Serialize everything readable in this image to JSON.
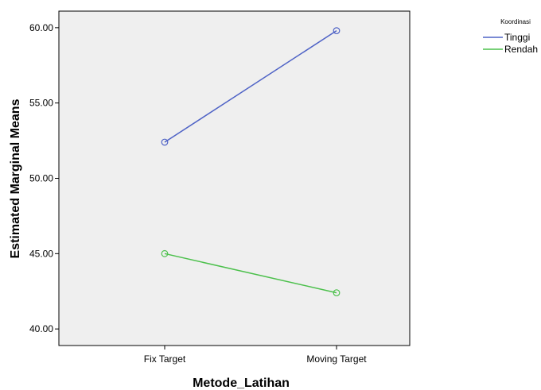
{
  "chart_data": {
    "type": "line",
    "xlabel": "Metode_Latihan",
    "ylabel": "Estimated Marginal Means",
    "categories": [
      "Fix Target",
      "Moving Target"
    ],
    "ylim": [
      38.9,
      61.1
    ],
    "yticks": [
      40,
      45,
      50,
      55,
      60
    ],
    "ytick_labels": [
      "40.00",
      "45.00",
      "50.00",
      "55.00",
      "60.00"
    ],
    "legend_title": "Koordinasi",
    "legend_position": "top-right outside",
    "background": "#efefef",
    "markers": "open circle",
    "series": [
      {
        "name": "Tinggi",
        "color": "#4f63c6",
        "values": [
          52.4,
          59.8
        ]
      },
      {
        "name": "Rendah",
        "color": "#4cc04c",
        "values": [
          45.0,
          42.4
        ]
      }
    ]
  }
}
